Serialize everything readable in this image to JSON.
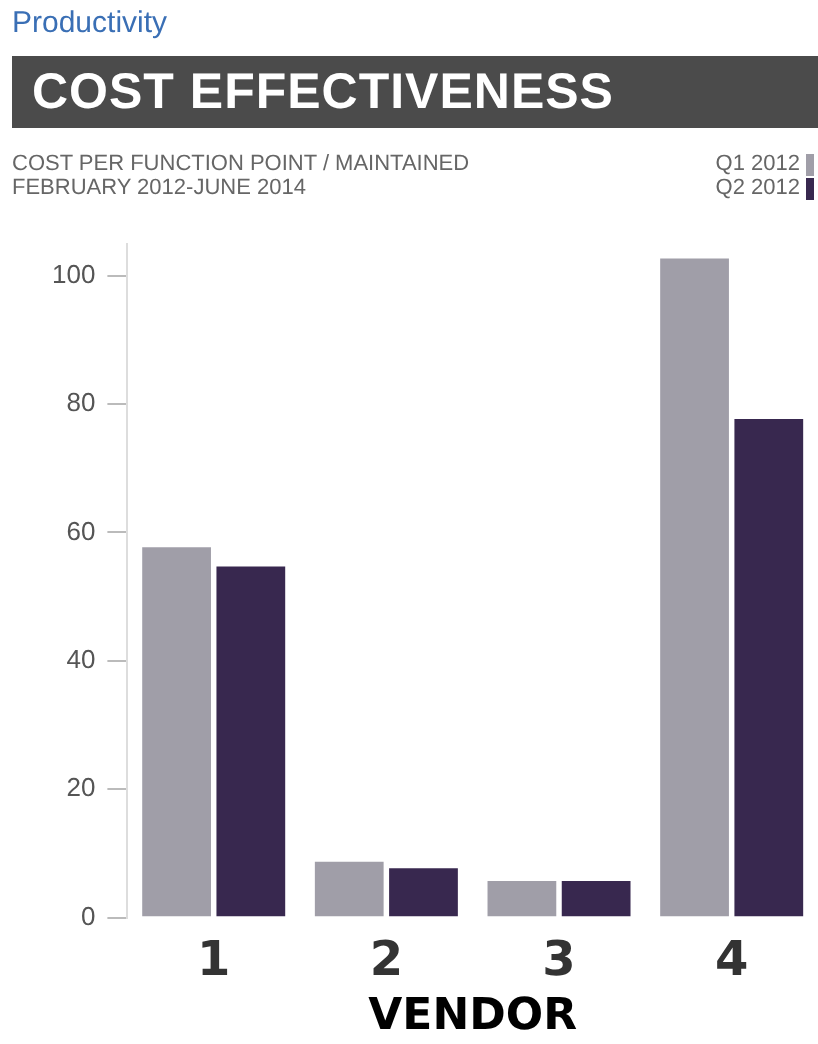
{
  "chart_data": {
    "type": "bar",
    "title": "COST EFFECTIVENESS",
    "subtitle": "COST PER FUNCTION POINT / MAINTAINED\nFEBRUARY 2012-JUNE 2014",
    "annotations": [
      "Productivity"
    ],
    "xlabel": "VENDOR",
    "categories": [
      "1",
      "2",
      "3",
      "4"
    ],
    "series": [
      {
        "name": "Q1 2012",
        "color": "#a09ea8",
        "values": [
          58,
          9,
          6,
          103
        ]
      },
      {
        "name": "Q2 2012",
        "color": "#38284f",
        "values": [
          55,
          8,
          6,
          78
        ]
      }
    ],
    "ylim": [
      0,
      105
    ],
    "yticks": [
      0,
      20,
      40,
      60,
      80,
      100
    ],
    "grid": false,
    "legend": "top right"
  }
}
